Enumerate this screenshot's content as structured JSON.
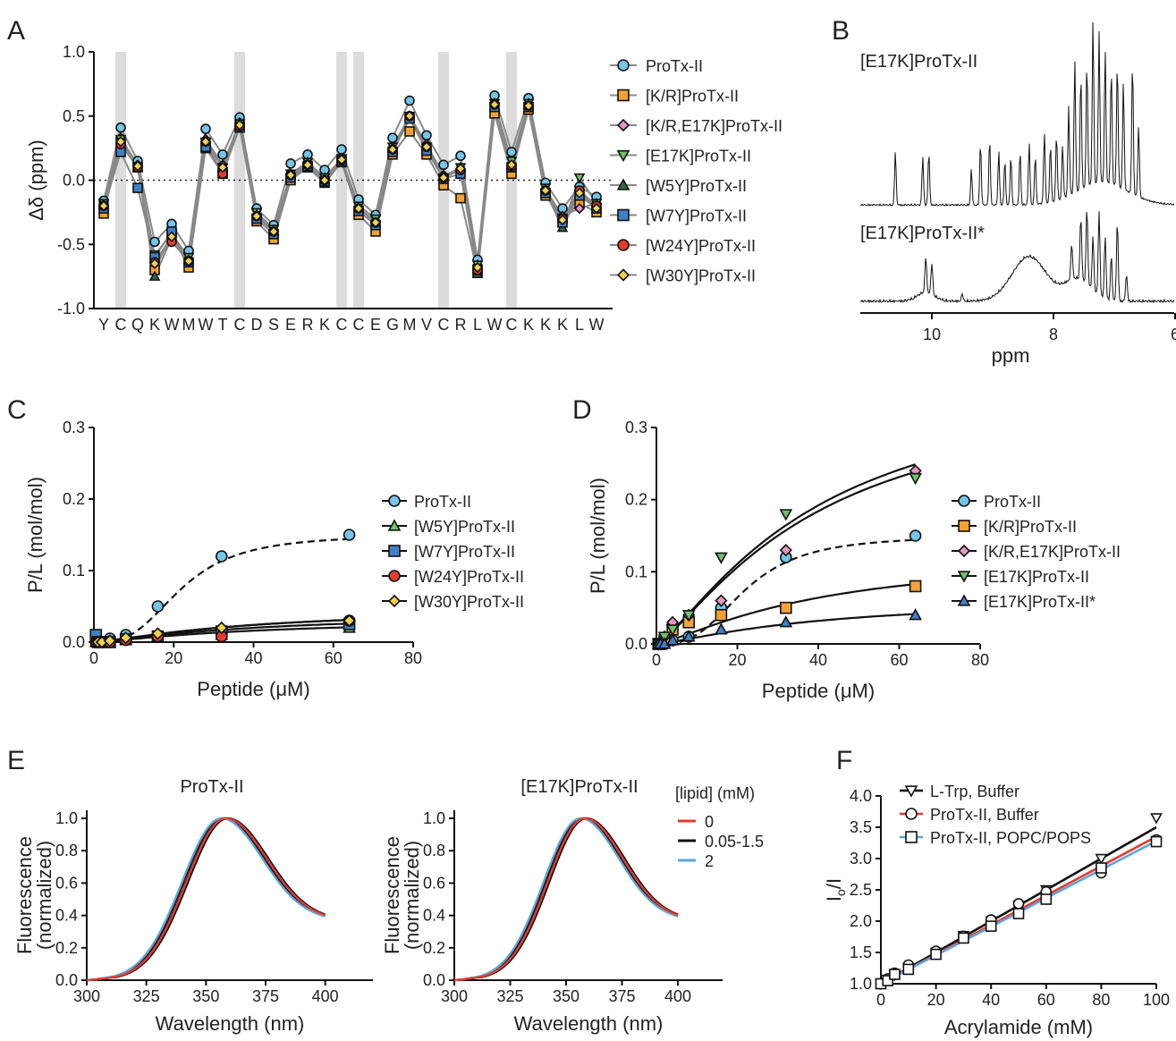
{
  "figure": {
    "panels": [
      "A",
      "B",
      "C",
      "D",
      "E",
      "F"
    ]
  },
  "chart_data": [
    {
      "panel": "A",
      "type": "line",
      "ylabel": "Δδ (ppm)",
      "ylim": [
        -1.0,
        1.0
      ],
      "yticks": [
        "1.0",
        "0.5",
        "0.0",
        "-0.5",
        "-1.0"
      ],
      "categories": [
        "Y",
        "C",
        "Q",
        "K",
        "W",
        "M",
        "W",
        "T",
        "C",
        "D",
        "S",
        "E",
        "R",
        "K",
        "C",
        "C",
        "E",
        "G",
        "M",
        "V",
        "C",
        "R",
        "L",
        "W",
        "C",
        "K",
        "K",
        "K",
        "L",
        "W"
      ],
      "highlight_categories": [
        1,
        8,
        14,
        15,
        20,
        24
      ],
      "zero_line": "dotted",
      "legend": "right",
      "series": [
        {
          "name": "ProTx-II",
          "marker": "circle",
          "color": "#74c5e8",
          "values": [
            -0.16,
            0.41,
            0.15,
            -0.48,
            -0.34,
            -0.55,
            0.4,
            0.2,
            0.49,
            -0.22,
            -0.35,
            0.13,
            0.2,
            0.08,
            0.24,
            -0.15,
            -0.27,
            0.33,
            0.62,
            0.35,
            0.12,
            0.19,
            -0.62,
            0.66,
            0.22,
            0.64,
            -0.02,
            -0.22,
            -0.05,
            -0.13
          ]
        },
        {
          "name": "[K/R]ProTx-II",
          "marker": "square",
          "color": "#f4a232",
          "values": [
            -0.26,
            0.3,
            0.1,
            -0.7,
            -0.42,
            -0.68,
            0.25,
            0.05,
            0.42,
            -0.32,
            -0.46,
            0.0,
            0.1,
            -0.02,
            0.14,
            -0.27,
            -0.4,
            0.2,
            0.38,
            0.2,
            -0.04,
            -0.14,
            -0.72,
            0.52,
            0.05,
            0.55,
            -0.12,
            -0.3,
            -0.18,
            -0.25
          ]
        },
        {
          "name": "[K/R,E17K]ProTx-II",
          "marker": "diamond",
          "color": "#e994c4",
          "values": [
            -0.2,
            0.33,
            0.12,
            -0.64,
            -0.44,
            -0.62,
            0.32,
            0.12,
            0.45,
            -0.27,
            -0.4,
            0.05,
            0.14,
            0.02,
            0.17,
            -0.22,
            -0.32,
            0.25,
            0.5,
            0.28,
            0.04,
            0.08,
            -0.66,
            0.6,
            0.12,
            0.6,
            -0.07,
            -0.28,
            -0.22,
            -0.18
          ]
        },
        {
          "name": "[E17K]ProTx-II",
          "marker": "triangle-down",
          "color": "#6cc36a",
          "values": [
            -0.18,
            0.32,
            0.1,
            -0.58,
            -0.42,
            -0.6,
            0.3,
            0.1,
            0.44,
            -0.25,
            -0.38,
            0.05,
            0.14,
            0.02,
            0.17,
            -0.2,
            -0.3,
            0.26,
            0.5,
            0.26,
            0.02,
            0.1,
            -0.66,
            0.6,
            0.15,
            0.6,
            -0.06,
            -0.36,
            0.02,
            -0.18
          ]
        },
        {
          "name": "[W5Y]ProTx-II",
          "marker": "triangle-up",
          "color": "#2f6b46",
          "values": [
            -0.19,
            0.28,
            0.1,
            -0.75,
            -0.45,
            -0.62,
            0.3,
            0.1,
            0.42,
            -0.27,
            -0.4,
            0.04,
            0.12,
            0.0,
            0.17,
            -0.22,
            -0.33,
            0.25,
            0.5,
            0.25,
            0.03,
            0.1,
            -0.73,
            0.58,
            0.12,
            0.58,
            -0.09,
            -0.37,
            -0.1,
            -0.2
          ]
        },
        {
          "name": "[W7Y]ProTx-II",
          "marker": "square",
          "color": "#3f80c6",
          "values": [
            -0.22,
            0.22,
            -0.06,
            -0.6,
            -0.4,
            -0.64,
            0.26,
            0.06,
            0.41,
            -0.3,
            -0.42,
            0.02,
            0.11,
            -0.01,
            0.15,
            -0.24,
            -0.35,
            0.22,
            0.48,
            0.23,
            0.01,
            0.05,
            -0.7,
            0.57,
            0.1,
            0.57,
            -0.1,
            -0.33,
            -0.12,
            -0.22
          ]
        },
        {
          "name": "[W24Y]ProTx-II",
          "marker": "circle",
          "color": "#e53b2e",
          "values": [
            -0.2,
            0.28,
            0.1,
            -0.64,
            -0.48,
            -0.63,
            0.3,
            0.05,
            0.42,
            -0.28,
            -0.4,
            0.04,
            0.12,
            0.0,
            0.16,
            -0.22,
            -0.33,
            0.24,
            0.5,
            0.26,
            0.02,
            0.08,
            -0.7,
            0.59,
            0.11,
            0.58,
            -0.08,
            -0.3,
            -0.08,
            -0.2
          ]
        },
        {
          "name": "[W30Y]ProTx-II",
          "marker": "diamond",
          "color": "#f1d24b",
          "values": [
            -0.2,
            0.3,
            0.11,
            -0.65,
            -0.44,
            -0.63,
            0.3,
            0.1,
            0.43,
            -0.28,
            -0.4,
            0.04,
            0.12,
            0.0,
            0.16,
            -0.22,
            -0.33,
            0.24,
            0.5,
            0.26,
            0.02,
            0.09,
            -0.68,
            0.59,
            0.12,
            0.58,
            -0.08,
            -0.31,
            -0.1,
            -0.22
          ]
        }
      ]
    },
    {
      "panel": "B",
      "type": "line",
      "xlabel": "ppm",
      "xticks": [
        "10",
        "8",
        "6"
      ],
      "traces": [
        "[E17K]ProTx-II",
        "[E17K]ProTx-II*"
      ]
    },
    {
      "panel": "C",
      "type": "scatter",
      "xlabel": "Peptide (μM)",
      "ylabel": "P/L (mol/mol)",
      "xlim": [
        0,
        80
      ],
      "ylim": [
        0,
        0.3
      ],
      "xticks": [
        "0",
        "20",
        "40",
        "60",
        "80"
      ],
      "yticks": [
        "0.3",
        "0.2",
        "0.1",
        "0.0"
      ],
      "x": [
        0.5,
        1,
        2,
        4,
        8,
        16,
        32,
        64
      ],
      "legend": "right",
      "series": [
        {
          "name": "ProTx-II",
          "marker": "circle",
          "color": "#74c5e8",
          "fit": "dashed",
          "values": [
            0.0,
            0.0,
            0.0,
            0.005,
            0.01,
            0.05,
            0.12,
            0.15
          ]
        },
        {
          "name": "[W5Y]ProTx-II",
          "marker": "triangle-up",
          "color": "#6cc36a",
          "fit": "solid",
          "values": [
            0.0,
            0.0,
            0.0,
            0.0,
            0.003,
            0.007,
            0.01,
            0.02
          ]
        },
        {
          "name": "[W7Y]ProTx-II",
          "marker": "square",
          "color": "#3f80c6",
          "fit": "solid",
          "values": [
            0.01,
            0.0,
            0.0,
            0.0,
            0.004,
            0.008,
            0.015,
            0.025
          ]
        },
        {
          "name": "[W24Y]ProTx-II",
          "marker": "circle",
          "color": "#e53b2e",
          "fit": "solid",
          "values": [
            0.0,
            0.0,
            0.0,
            0.0,
            0.003,
            0.008,
            0.008,
            0.03
          ]
        },
        {
          "name": "[W30Y]ProTx-II",
          "marker": "diamond",
          "color": "#f1d24b",
          "fit": "solid",
          "values": [
            0.0,
            0.0,
            0.0,
            0.002,
            0.006,
            0.012,
            0.02,
            0.03
          ]
        }
      ]
    },
    {
      "panel": "D",
      "type": "scatter",
      "xlabel": "Peptide (μM)",
      "ylabel": "P/L (mol/mol)",
      "xlim": [
        0,
        80
      ],
      "ylim": [
        0,
        0.3
      ],
      "xticks": [
        "0",
        "20",
        "40",
        "60",
        "80"
      ],
      "yticks": [
        "0.3",
        "0.2",
        "0.1",
        "0.0"
      ],
      "x": [
        0.5,
        1,
        2,
        4,
        8,
        16,
        32,
        64
      ],
      "legend": "right",
      "series": [
        {
          "name": "ProTx-II",
          "marker": "circle",
          "color": "#74c5e8",
          "fit": "dashed",
          "values": [
            0.0,
            0.0,
            0.0,
            0.005,
            0.01,
            0.05,
            0.12,
            0.15
          ]
        },
        {
          "name": "[K/R]ProTx-II",
          "marker": "square",
          "color": "#f4a232",
          "fit": "solid",
          "values": [
            0.0,
            0.0,
            0.005,
            0.02,
            0.03,
            0.04,
            0.05,
            0.08
          ]
        },
        {
          "name": "[K/R,E17K]ProTx-II",
          "marker": "diamond",
          "color": "#e994c4",
          "fit": "solid",
          "values": [
            0.0,
            0.0,
            0.01,
            0.03,
            0.04,
            0.06,
            0.13,
            0.24
          ]
        },
        {
          "name": "[E17K]ProTx-II",
          "marker": "triangle-down",
          "color": "#6cc36a",
          "fit": "solid",
          "values": [
            0.0,
            0.0,
            0.01,
            0.02,
            0.04,
            0.12,
            0.18,
            0.23
          ]
        },
        {
          "name": "[E17K]ProTx-II*",
          "marker": "triangle-up",
          "color": "#3f80c6",
          "fit": "solid",
          "values": [
            0.0,
            0.0,
            0.0,
            0.005,
            0.01,
            0.02,
            0.03,
            0.04
          ]
        }
      ]
    },
    {
      "panel": "E",
      "type": "line",
      "subplots": [
        {
          "title": "ProTx-II",
          "xlabel": "Wavelength (nm)",
          "ylabel": "Fluorescence (normalized)"
        },
        {
          "title": "[E17K]ProTx-II",
          "xlabel": "Wavelength (nm)",
          "ylabel": "Fluorescence (normalized)"
        }
      ],
      "xlim": [
        300,
        420
      ],
      "ylim": [
        0,
        1.05
      ],
      "xticks": [
        "300",
        "325",
        "350",
        "375",
        "400"
      ],
      "yticks": [
        "1.0",
        "0.8",
        "0.6",
        "0.4",
        "0.2",
        "0.0"
      ],
      "legend_title": "[lipid] (mM)",
      "series": [
        {
          "name": "0",
          "color": "#e53b2e"
        },
        {
          "name": "0.05-1.5",
          "color": "#111111"
        },
        {
          "name": "2",
          "color": "#5aa5dd"
        }
      ],
      "peak_nm": 358,
      "end_value": 0.37
    },
    {
      "panel": "F",
      "type": "scatter",
      "xlabel": "Acrylamide (mM)",
      "ylabel": "Io/I",
      "xlim": [
        0,
        100
      ],
      "ylim": [
        1.0,
        4.0
      ],
      "xticks": [
        "0",
        "20",
        "40",
        "60",
        "80",
        "100"
      ],
      "yticks": [
        "4.0",
        "3.5",
        "3.0",
        "2.5",
        "2.0",
        "1.5",
        "1.0"
      ],
      "x": [
        0,
        2.5,
        5,
        10,
        20,
        30,
        40,
        50,
        60,
        80,
        100
      ],
      "legend": "top-left",
      "series": [
        {
          "name": "L-Trp, Buffer",
          "marker": "triangle-down",
          "color": "#111111",
          "values": [
            1.0,
            1.07,
            1.14,
            1.26,
            1.5,
            1.77,
            2.0,
            2.25,
            2.5,
            3.0,
            3.65
          ]
        },
        {
          "name": "ProTx-II, Buffer",
          "marker": "circle",
          "color": "#e53b2e",
          "values": [
            1.0,
            1.08,
            1.17,
            1.3,
            1.52,
            1.76,
            2.02,
            2.28,
            2.47,
            2.77,
            3.3
          ]
        },
        {
          "name": "ProTx-II, POPC/POPS",
          "marker": "square",
          "color": "#5aa5dd",
          "values": [
            1.0,
            1.05,
            1.15,
            1.23,
            1.47,
            1.73,
            1.92,
            2.12,
            2.35,
            2.85,
            3.27
          ]
        }
      ]
    }
  ]
}
